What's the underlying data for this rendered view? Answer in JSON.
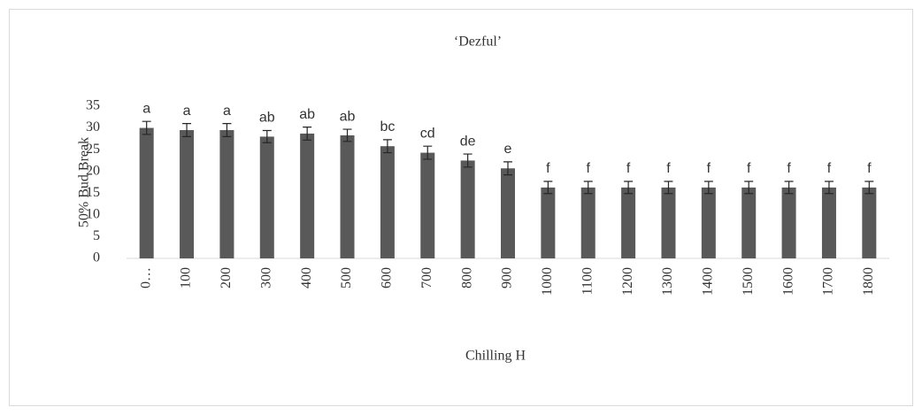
{
  "chart_data": {
    "type": "bar",
    "title": "‘Dezful’",
    "x_label": "Chilling H",
    "y_label": "50% Bud Break",
    "categories": [
      "0…",
      "100",
      "200",
      "300",
      "400",
      "500",
      "600",
      "700",
      "800",
      "900",
      "1000",
      "1100",
      "1200",
      "1300",
      "1400",
      "1500",
      "1600",
      "1700",
      "1800"
    ],
    "values": [
      30,
      29.5,
      29.5,
      28,
      28.7,
      28.3,
      25.8,
      24.3,
      22.5,
      20.7,
      16.3,
      16.3,
      16.3,
      16.3,
      16.3,
      16.3,
      16.3,
      16.3,
      16.3
    ],
    "errors": [
      1.5,
      1.5,
      1.5,
      1.4,
      1.5,
      1.4,
      1.5,
      1.5,
      1.5,
      1.5,
      1.4,
      1.4,
      1.4,
      1.4,
      1.4,
      1.4,
      1.4,
      1.4,
      1.4
    ],
    "group_letters": [
      "a",
      "a",
      "a",
      "ab",
      "ab",
      "ab",
      "bc",
      "cd",
      "de",
      "e",
      "f",
      "f",
      "f",
      "f",
      "f",
      "f",
      "f",
      "f",
      "f"
    ],
    "color": "#595959",
    "ylim": [
      0,
      35
    ],
    "yticks": [
      0,
      5,
      10,
      15,
      20,
      25,
      30,
      35
    ],
    "grid": false
  }
}
